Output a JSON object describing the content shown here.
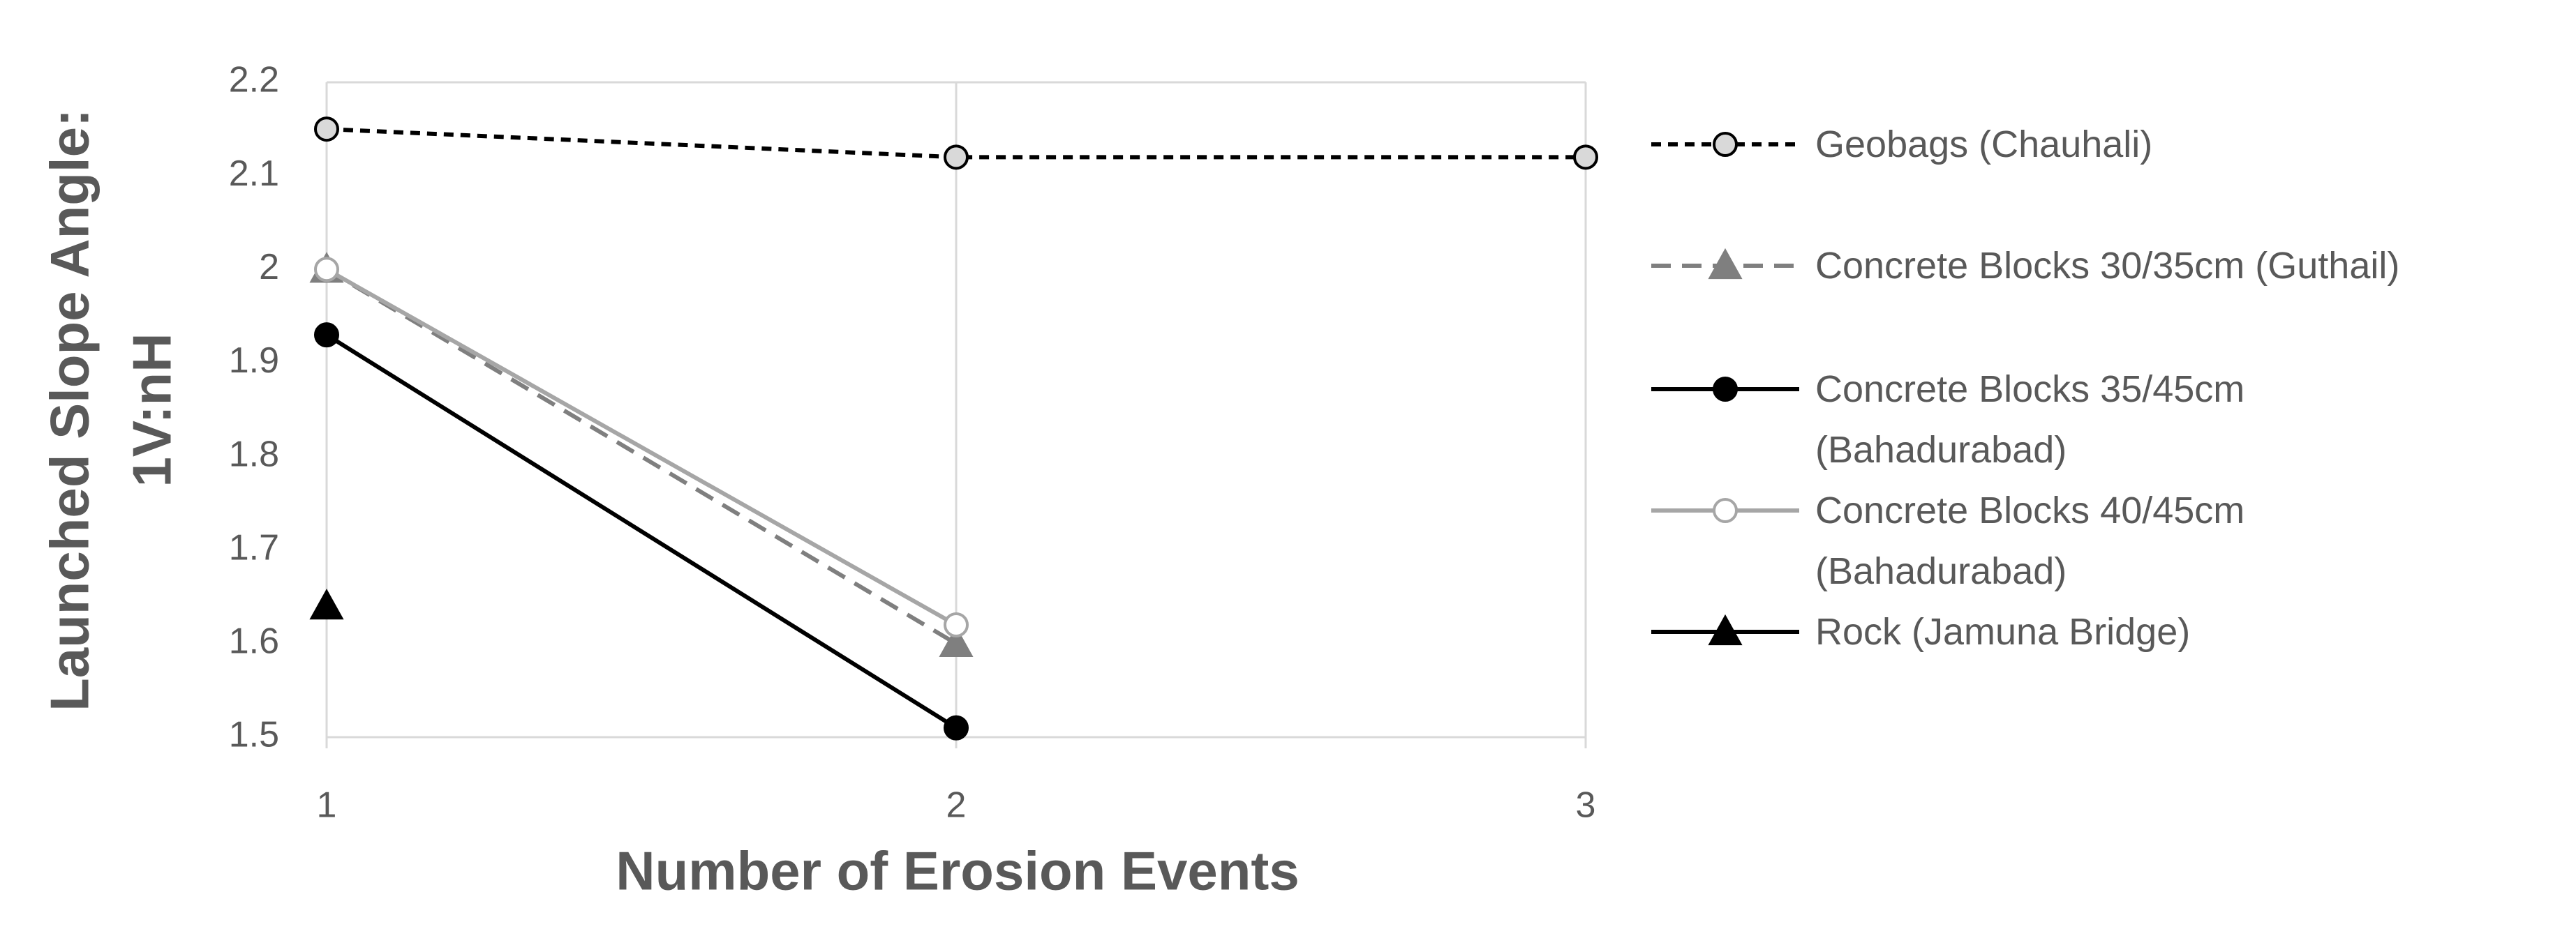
{
  "chart_data": {
    "type": "line",
    "xlabel": "Number of Erosion Events",
    "ylabel": [
      "Launched Slope Angle:",
      "1V:nH"
    ],
    "x": [
      1,
      2,
      3
    ],
    "xlim": [
      1,
      3
    ],
    "xticks": [
      1,
      2,
      3
    ],
    "ylim": [
      1.5,
      2.2
    ],
    "yticks": [
      1.5,
      1.6,
      1.7,
      1.8,
      1.9,
      2,
      2.1,
      2.2
    ],
    "grid": "x",
    "legend": "right",
    "series": [
      {
        "name": "Geobags (Chauhali)",
        "color": "#000000",
        "dash": true,
        "marker": "circle",
        "marker_fill": "#d9d9d9",
        "values": [
          2.15,
          2.12,
          2.12
        ]
      },
      {
        "name": "Concrete Blocks 30/35cm (Guthail)",
        "color": "#7f7f7f",
        "dash": true,
        "marker": "triangle",
        "marker_fill": "#7f7f7f",
        "values": [
          2.0,
          1.6,
          null
        ]
      },
      {
        "name": "Concrete Blocks 35/45cm (Bahadurabad)",
        "color": "#000000",
        "dash": false,
        "marker": "circle",
        "marker_fill": "#000000",
        "values": [
          1.93,
          1.51,
          null
        ]
      },
      {
        "name": "Concrete Blocks 40/45cm (Bahadurabad)",
        "color": "#a6a6a6",
        "dash": false,
        "marker": "circle",
        "marker_fill": "#ffffff",
        "values": [
          2.0,
          1.62,
          null
        ]
      },
      {
        "name": "Rock (Jamuna Bridge)",
        "color": "#000000",
        "dash": false,
        "marker": "triangle",
        "marker_fill": "#000000",
        "values": [
          1.64,
          null,
          null
        ]
      }
    ]
  }
}
